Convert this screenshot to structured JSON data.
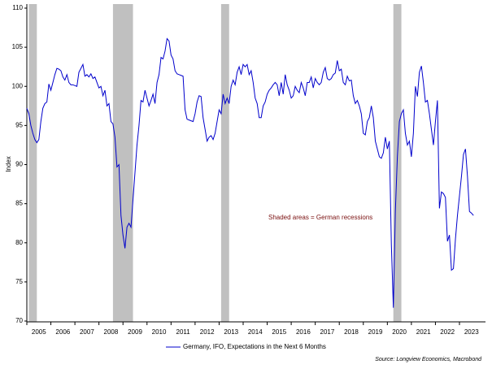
{
  "chart_data": {
    "type": "line",
    "axis_label_y": "Index",
    "annotation": "Shaded areas = German recessions",
    "source": "Source: Longview Economics, Macrobond",
    "recession_color": "#c0c0c0",
    "recessions": [
      {
        "start": "2005-02",
        "end": "2005-05"
      },
      {
        "start": "2008-08",
        "end": "2009-05"
      },
      {
        "start": "2013-02",
        "end": "2013-05"
      },
      {
        "start": "2020-04",
        "end": "2020-07"
      }
    ],
    "xlim": [
      "2005-01",
      "2024-02"
    ],
    "xticks": [
      "2005",
      "2006",
      "2007",
      "2008",
      "2009",
      "2010",
      "2011",
      "2012",
      "2013",
      "2014",
      "2015",
      "2016",
      "2017",
      "2018",
      "2019",
      "2020",
      "2021",
      "2022",
      "2023"
    ],
    "ylim": [
      70,
      110
    ],
    "yticks": [
      70,
      75,
      80,
      85,
      90,
      95,
      100,
      105,
      110
    ],
    "x": [
      "2005-01",
      "2005-02",
      "2005-03",
      "2005-04",
      "2005-05",
      "2005-06",
      "2005-07",
      "2005-08",
      "2005-09",
      "2005-10",
      "2005-11",
      "2005-12",
      "2006-01",
      "2006-02",
      "2006-03",
      "2006-04",
      "2006-05",
      "2006-06",
      "2006-07",
      "2006-08",
      "2006-09",
      "2006-10",
      "2006-11",
      "2006-12",
      "2007-01",
      "2007-02",
      "2007-03",
      "2007-04",
      "2007-05",
      "2007-06",
      "2007-07",
      "2007-08",
      "2007-09",
      "2007-10",
      "2007-11",
      "2007-12",
      "2008-01",
      "2008-02",
      "2008-03",
      "2008-04",
      "2008-05",
      "2008-06",
      "2008-07",
      "2008-08",
      "2008-09",
      "2008-10",
      "2008-11",
      "2008-12",
      "2009-01",
      "2009-02",
      "2009-03",
      "2009-04",
      "2009-05",
      "2009-06",
      "2009-07",
      "2009-08",
      "2009-09",
      "2009-10",
      "2009-11",
      "2009-12",
      "2010-01",
      "2010-02",
      "2010-03",
      "2010-04",
      "2010-05",
      "2010-06",
      "2010-07",
      "2010-08",
      "2010-09",
      "2010-10",
      "2010-11",
      "2010-12",
      "2011-01",
      "2011-02",
      "2011-03",
      "2011-04",
      "2011-05",
      "2011-06",
      "2011-07",
      "2011-08",
      "2011-09",
      "2011-10",
      "2011-11",
      "2011-12",
      "2012-01",
      "2012-02",
      "2012-03",
      "2012-04",
      "2012-05",
      "2012-06",
      "2012-07",
      "2012-08",
      "2012-09",
      "2012-10",
      "2012-11",
      "2012-12",
      "2013-01",
      "2013-02",
      "2013-03",
      "2013-04",
      "2013-05",
      "2013-06",
      "2013-07",
      "2013-08",
      "2013-09",
      "2013-10",
      "2013-11",
      "2013-12",
      "2014-01",
      "2014-02",
      "2014-03",
      "2014-04",
      "2014-05",
      "2014-06",
      "2014-07",
      "2014-08",
      "2014-09",
      "2014-10",
      "2014-11",
      "2014-12",
      "2015-01",
      "2015-02",
      "2015-03",
      "2015-04",
      "2015-05",
      "2015-06",
      "2015-07",
      "2015-08",
      "2015-09",
      "2015-10",
      "2015-11",
      "2015-12",
      "2016-01",
      "2016-02",
      "2016-03",
      "2016-04",
      "2016-05",
      "2016-06",
      "2016-07",
      "2016-08",
      "2016-09",
      "2016-10",
      "2016-11",
      "2016-12",
      "2017-01",
      "2017-02",
      "2017-03",
      "2017-04",
      "2017-05",
      "2017-06",
      "2017-07",
      "2017-08",
      "2017-09",
      "2017-10",
      "2017-11",
      "2017-12",
      "2018-01",
      "2018-02",
      "2018-03",
      "2018-04",
      "2018-05",
      "2018-06",
      "2018-07",
      "2018-08",
      "2018-09",
      "2018-10",
      "2018-11",
      "2018-12",
      "2019-01",
      "2019-02",
      "2019-03",
      "2019-04",
      "2019-05",
      "2019-06",
      "2019-07",
      "2019-08",
      "2019-09",
      "2019-10",
      "2019-11",
      "2019-12",
      "2020-01",
      "2020-02",
      "2020-03",
      "2020-04",
      "2020-05",
      "2020-06",
      "2020-07",
      "2020-08",
      "2020-09",
      "2020-10",
      "2020-11",
      "2020-12",
      "2021-01",
      "2021-02",
      "2021-03",
      "2021-04",
      "2021-05",
      "2021-06",
      "2021-07",
      "2021-08",
      "2021-09",
      "2021-10",
      "2021-11",
      "2021-12",
      "2022-01",
      "2022-02",
      "2022-03",
      "2022-04",
      "2022-05",
      "2022-06",
      "2022-07",
      "2022-08",
      "2022-09",
      "2022-10",
      "2022-11",
      "2022-12",
      "2023-01",
      "2023-02",
      "2023-03",
      "2023-04",
      "2023-05",
      "2023-06",
      "2023-07",
      "2023-08"
    ],
    "series": [
      {
        "name": "Germany, IFO, Expectations in the Next 6 Months",
        "color": "#0000cc",
        "values": [
          97.2,
          96.5,
          95.0,
          94.0,
          93.2,
          92.8,
          93.2,
          95.5,
          97.2,
          97.8,
          98.0,
          100.3,
          99.5,
          100.5,
          101.5,
          102.3,
          102.2,
          102.0,
          101.2,
          100.8,
          101.5,
          100.5,
          100.2,
          100.2,
          100.1,
          100.0,
          101.8,
          102.3,
          102.8,
          101.3,
          101.5,
          101.2,
          101.6,
          101.0,
          101.2,
          100.5,
          99.8,
          100.0,
          98.8,
          99.5,
          97.5,
          97.8,
          95.5,
          95.2,
          93.5,
          89.7,
          90.0,
          83.5,
          81.0,
          79.3,
          82.0,
          82.5,
          82.0,
          85.5,
          89.0,
          92.5,
          95.0,
          98.2,
          98.0,
          99.5,
          98.5,
          97.5,
          98.2,
          99.0,
          97.8,
          100.5,
          101.5,
          103.7,
          103.5,
          104.5,
          106.1,
          105.8,
          104.0,
          103.5,
          102.0,
          101.6,
          101.5,
          101.4,
          101.3,
          97.0,
          95.8,
          95.7,
          95.6,
          95.5,
          96.5,
          98.0,
          98.8,
          98.7,
          96.0,
          94.5,
          93.0,
          93.5,
          93.7,
          93.2,
          94.0,
          95.5,
          97.0,
          96.5,
          99.0,
          97.8,
          98.5,
          97.8,
          100.0,
          100.8,
          100.2,
          101.8,
          102.5,
          101.5,
          102.8,
          102.5,
          102.8,
          101.5,
          102.0,
          100.5,
          98.5,
          97.8,
          96.0,
          96.0,
          97.5,
          98.0,
          99.0,
          99.5,
          99.8,
          100.2,
          100.5,
          100.2,
          98.8,
          100.5,
          99.0,
          101.5,
          100.2,
          99.5,
          98.5,
          98.8,
          100.0,
          99.5,
          99.2,
          100.5,
          99.8,
          98.8,
          100.5,
          100.5,
          101.2,
          99.8,
          101.0,
          100.5,
          100.2,
          100.5,
          101.8,
          102.4,
          101.0,
          100.8,
          101.0,
          101.5,
          101.7,
          103.3,
          102.0,
          102.2,
          100.5,
          100.2,
          101.3,
          100.7,
          100.8,
          98.8,
          97.8,
          98.2,
          97.5,
          96.5,
          94.0,
          93.8,
          95.5,
          96.0,
          97.5,
          96.0,
          93.0,
          92.0,
          91.0,
          90.8,
          91.5,
          93.5,
          92.0,
          93.0,
          79.8,
          71.7,
          84.0,
          91.0,
          95.5,
          96.5,
          97.0,
          94.0,
          92.5,
          93.0,
          91.0,
          94.0,
          100.0,
          98.7,
          101.8,
          102.6,
          100.5,
          98.0,
          98.2,
          96.5,
          94.5,
          92.5,
          95.5,
          98.2,
          84.4,
          86.5,
          86.3,
          85.8,
          80.2,
          81.0,
          76.5,
          76.7,
          80.5,
          83.5,
          86.0,
          88.5,
          91.3,
          92.0,
          88.5,
          84.0,
          83.8,
          83.5
        ]
      }
    ]
  }
}
